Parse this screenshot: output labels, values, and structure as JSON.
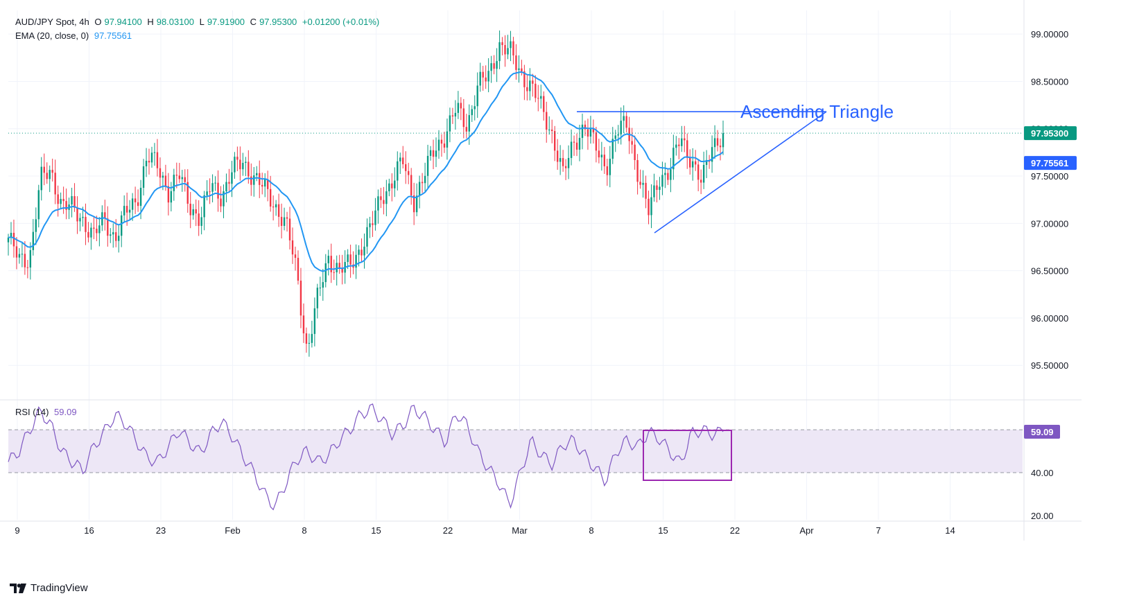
{
  "header": {
    "symbol": "AUD/JPY Spot, 4h",
    "open_label": "O",
    "open": "97.94100",
    "high_label": "H",
    "high": "98.03100",
    "low_label": "L",
    "low": "97.91900",
    "close_label": "C",
    "close": "97.95300",
    "change": "+0.01200 (+0.01%)",
    "ema_label": "EMA (20, close, 0)",
    "ema_value": "97.75561",
    "rsi_label": "RSI (14)",
    "rsi_value": "59.09"
  },
  "annotation": {
    "pattern_label": "Ascending Triangle"
  },
  "price_axis": {
    "labels": [
      "99.00000",
      "98.50000",
      "98.00000",
      "97.50000",
      "97.00000",
      "96.50000",
      "96.00000",
      "95.50000"
    ],
    "current_price_tag": "97.95300",
    "ema_tag": "97.75561"
  },
  "rsi_axis": {
    "labels": [
      "40.00",
      "20.00"
    ],
    "current_tag": "59.09"
  },
  "time_axis": {
    "labels": [
      "9",
      "16",
      "23",
      "Feb",
      "8",
      "15",
      "22",
      "Mar",
      "8",
      "15",
      "22",
      "Apr",
      "7",
      "14"
    ]
  },
  "brand": {
    "name": "TradingView"
  },
  "colors": {
    "up": "#089981",
    "down": "#f23645",
    "ema": "#2196f3",
    "rsi": "#7e57c2",
    "trendline": "#2962ff",
    "rsi_band": "#ede7f6",
    "tag_green": "#089981",
    "tag_blue": "#2962ff",
    "tag_purple": "#7e57c2"
  },
  "chart_data": [
    {
      "type": "candlestick",
      "title": "AUD/JPY Spot, 4h",
      "x_ticks": [
        "9",
        "16",
        "23",
        "Feb",
        "8",
        "15",
        "22",
        "Mar",
        "8",
        "15",
        "22",
        "Apr",
        "7",
        "14"
      ],
      "ylim": [
        95.15,
        99.25
      ],
      "y_ticks": [
        95.5,
        96.0,
        96.5,
        97.0,
        97.5,
        98.0,
        98.5,
        99.0
      ],
      "price_anchors": [
        96.85,
        96.6,
        96.65,
        97.45,
        97.55,
        97.2,
        97.15,
        97.05,
        96.85,
        97.05,
        96.85,
        97.1,
        97.25,
        97.7,
        97.6,
        97.35,
        97.5,
        97.2,
        97.05,
        97.4,
        97.3,
        97.55,
        97.65,
        97.5,
        97.35,
        97.2,
        97.0,
        96.5,
        95.65,
        96.2,
        96.65,
        96.5,
        96.55,
        96.75,
        96.95,
        97.3,
        97.45,
        97.65,
        97.25,
        97.5,
        97.8,
        97.95,
        98.2,
        98.05,
        98.45,
        98.55,
        98.9,
        98.8,
        98.6,
        98.45,
        98.2,
        97.95,
        97.5,
        97.85,
        98.05,
        97.8,
        97.6,
        97.95,
        98.05,
        97.55,
        97.1,
        97.5,
        97.55,
        97.9,
        97.7,
        97.4,
        97.85,
        97.95
      ],
      "series": [
        {
          "name": "EMA (20, close, 0)",
          "last": 97.75561
        }
      ],
      "last_close": 97.953,
      "trendlines": {
        "label": "Ascending Triangle",
        "resistance": [
          [
            0.515,
            98.18
          ],
          [
            0.775,
            98.18
          ]
        ],
        "support": [
          [
            0.605,
            96.9
          ],
          [
            0.775,
            98.18
          ]
        ]
      }
    },
    {
      "type": "line",
      "title": "RSI (14)",
      "ylim": [
        18,
        73
      ],
      "y_ticks": [
        40,
        20
      ],
      "band": [
        40,
        60
      ],
      "values": [
        45,
        50,
        60,
        69,
        62,
        50,
        45,
        41,
        52,
        59,
        67,
        63,
        55,
        47,
        45,
        52,
        60,
        54,
        49,
        58,
        64,
        57,
        48,
        40,
        30,
        24,
        35,
        46,
        50,
        45,
        48,
        55,
        60,
        67,
        70,
        65,
        58,
        62,
        70,
        66,
        60,
        54,
        68,
        62,
        50,
        42,
        35,
        25,
        40,
        55,
        48,
        44,
        53,
        55,
        48,
        42,
        36,
        50,
        55,
        52,
        59,
        56,
        50,
        44,
        58,
        60,
        58,
        59.09
      ],
      "last": 59.09
    }
  ]
}
